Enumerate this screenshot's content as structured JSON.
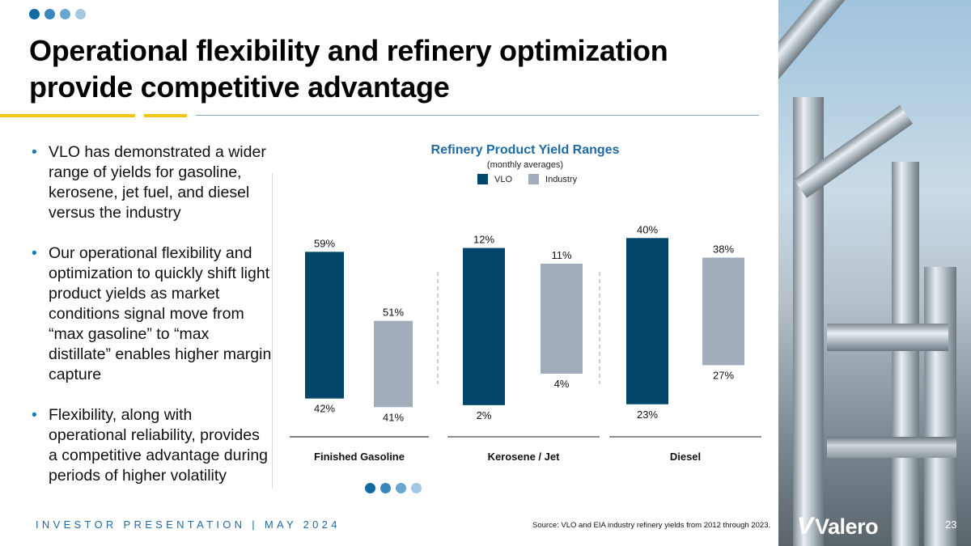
{
  "header": {
    "title": "Operational flexibility and refinery optimization provide competitive advantage"
  },
  "bullets": [
    "VLO has demonstrated a wider range of yields for gasoline, kerosene, jet fuel, and diesel versus the industry",
    "Our operational flexibility and optimization to quickly shift light product yields as market conditions signal move from “max gasoline” to “max distillate” enables higher margin capture",
    "Flexibility, along with operational reliability, provides a competitive advantage during periods of higher volatility"
  ],
  "bullet_icon": "bullet-dot",
  "colors": {
    "vlo": "#02466b",
    "industry": "#a2adbb",
    "accent_blue": "#1f6aa5",
    "accent_yellow": "#f5c518"
  },
  "chart_data": {
    "type": "bar",
    "subtype": "floating-range",
    "title": "Refinery Product Yield Ranges",
    "subtitle": "(monthly averages)",
    "xlabel": "",
    "ylabel": "",
    "legend": [
      "VLO",
      "Industry"
    ],
    "legend_position": "top-center",
    "grid": false,
    "categories": [
      "Finished Gasoline",
      "Kerosene / Jet",
      "Diesel"
    ],
    "series": [
      {
        "name": "VLO",
        "ranges": [
          [
            42,
            59
          ],
          [
            2,
            12
          ],
          [
            23,
            40
          ]
        ],
        "low_labels": [
          "42%",
          "2%",
          "23%"
        ],
        "high_labels": [
          "59%",
          "12%",
          "40%"
        ]
      },
      {
        "name": "Industry",
        "ranges": [
          [
            41,
            51
          ],
          [
            4,
            11
          ],
          [
            27,
            38
          ]
        ],
        "low_labels": [
          "41%",
          "4%",
          "27%"
        ],
        "high_labels": [
          "51%",
          "11%",
          "38%"
        ]
      }
    ],
    "panel_ylims": [
      [
        38.5,
        64
      ],
      [
        0.5,
        14.5
      ],
      [
        20.5,
        43
      ]
    ],
    "note": "Each category panel uses its own independent scale"
  },
  "footer": {
    "left": "INVESTOR PRESENTATION | MAY 2024",
    "source": "Source: VLO and EIA industry refinery yields from 2012 through 2023.",
    "logo": "Valero",
    "page_number": "23"
  }
}
